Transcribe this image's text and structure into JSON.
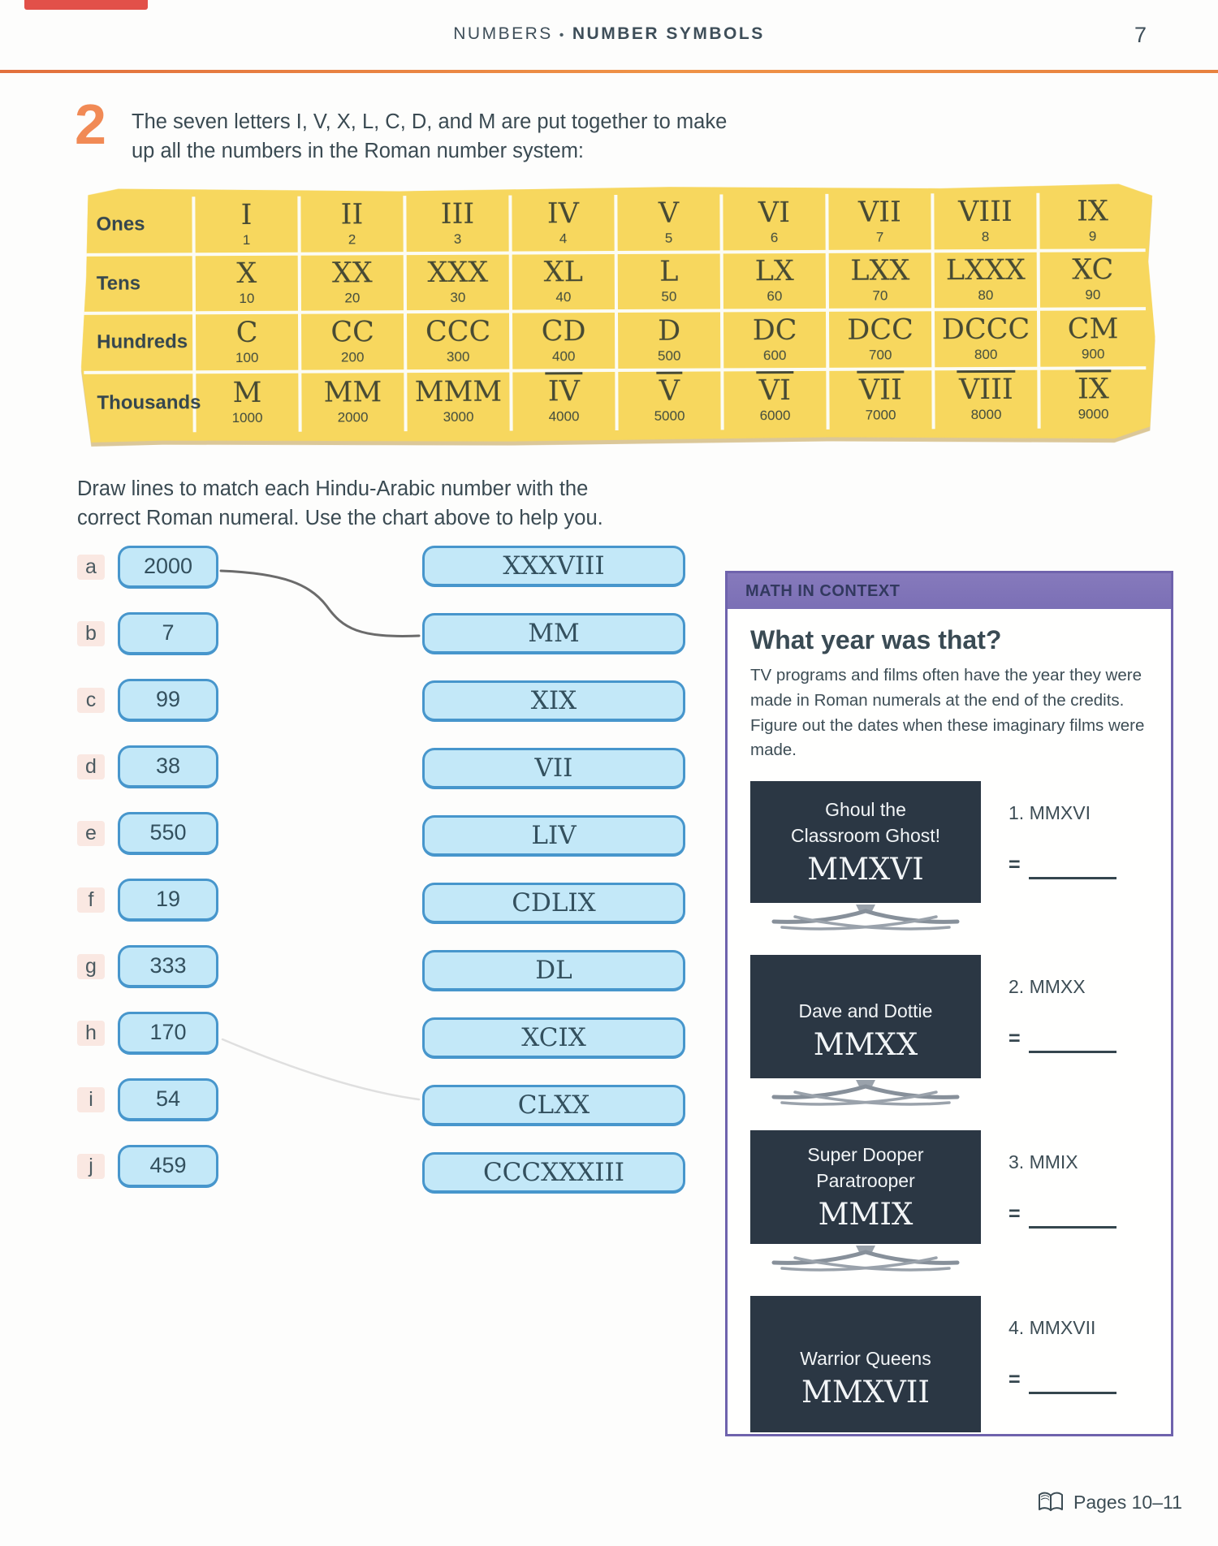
{
  "header": {
    "section": "NUMBERS",
    "separator": "•",
    "title": "NUMBER SYMBOLS",
    "page_number": "7"
  },
  "lesson": {
    "number": "2",
    "intro_lines": [
      "The seven letters I, V, X, L, C, D, and M are put together to make",
      "up all the numbers in the Roman number system:"
    ]
  },
  "numeral_table": {
    "rows": [
      {
        "label": "Ones",
        "cells": [
          {
            "roman": "I",
            "value": "1",
            "overline": false
          },
          {
            "roman": "II",
            "value": "2",
            "overline": false
          },
          {
            "roman": "III",
            "value": "3",
            "overline": false
          },
          {
            "roman": "IV",
            "value": "4",
            "overline": false
          },
          {
            "roman": "V",
            "value": "5",
            "overline": false
          },
          {
            "roman": "VI",
            "value": "6",
            "overline": false
          },
          {
            "roman": "VII",
            "value": "7",
            "overline": false
          },
          {
            "roman": "VIII",
            "value": "8",
            "overline": false
          },
          {
            "roman": "IX",
            "value": "9",
            "overline": false
          }
        ]
      },
      {
        "label": "Tens",
        "cells": [
          {
            "roman": "X",
            "value": "10",
            "overline": false
          },
          {
            "roman": "XX",
            "value": "20",
            "overline": false
          },
          {
            "roman": "XXX",
            "value": "30",
            "overline": false
          },
          {
            "roman": "XL",
            "value": "40",
            "overline": false
          },
          {
            "roman": "L",
            "value": "50",
            "overline": false
          },
          {
            "roman": "LX",
            "value": "60",
            "overline": false
          },
          {
            "roman": "LXX",
            "value": "70",
            "overline": false
          },
          {
            "roman": "LXXX",
            "value": "80",
            "overline": false
          },
          {
            "roman": "XC",
            "value": "90",
            "overline": false
          }
        ]
      },
      {
        "label": "Hundreds",
        "cells": [
          {
            "roman": "C",
            "value": "100",
            "overline": false
          },
          {
            "roman": "CC",
            "value": "200",
            "overline": false
          },
          {
            "roman": "CCC",
            "value": "300",
            "overline": false
          },
          {
            "roman": "CD",
            "value": "400",
            "overline": false
          },
          {
            "roman": "D",
            "value": "500",
            "overline": false
          },
          {
            "roman": "DC",
            "value": "600",
            "overline": false
          },
          {
            "roman": "DCC",
            "value": "700",
            "overline": false
          },
          {
            "roman": "DCCC",
            "value": "800",
            "overline": false
          },
          {
            "roman": "CM",
            "value": "900",
            "overline": false
          }
        ]
      },
      {
        "label": "Thousands",
        "cells": [
          {
            "roman": "M",
            "value": "1000",
            "overline": false
          },
          {
            "roman": "MM",
            "value": "2000",
            "overline": false
          },
          {
            "roman": "MMM",
            "value": "3000",
            "overline": false
          },
          {
            "roman": "IV",
            "value": "4000",
            "overline": true
          },
          {
            "roman": "V",
            "value": "5000",
            "overline": true
          },
          {
            "roman": "VI",
            "value": "6000",
            "overline": true
          },
          {
            "roman": "VII",
            "value": "7000",
            "overline": true
          },
          {
            "roman": "VIII",
            "value": "8000",
            "overline": true
          },
          {
            "roman": "IX",
            "value": "9000",
            "overline": true
          }
        ]
      }
    ]
  },
  "matching": {
    "instruction_lines": [
      "Draw lines to match each Hindu-Arabic number with the",
      "correct Roman numeral. Use the chart above to help you."
    ],
    "numbers": [
      {
        "letter": "a",
        "number": "2000"
      },
      {
        "letter": "b",
        "number": "7"
      },
      {
        "letter": "c",
        "number": "99"
      },
      {
        "letter": "d",
        "number": "38"
      },
      {
        "letter": "e",
        "number": "550"
      },
      {
        "letter": "f",
        "number": "19"
      },
      {
        "letter": "g",
        "number": "333"
      },
      {
        "letter": "h",
        "number": "170"
      },
      {
        "letter": "i",
        "number": "54"
      },
      {
        "letter": "j",
        "number": "459"
      }
    ],
    "romans": [
      "XXXVIII",
      "MM",
      "XIX",
      "VII",
      "LIV",
      "CDLIX",
      "DL",
      "XCIX",
      "CLXX",
      "CCCXXXIII"
    ],
    "drawn_example": {
      "from": "2000",
      "to": "MM"
    }
  },
  "math_in_context": {
    "header": "MATH IN CONTEXT",
    "title": "What year was that?",
    "paragraph": "TV programs and films often have the year they were made in Roman numerals at the end of the credits. Figure out the dates when these imaginary films were made.",
    "tvs": [
      {
        "title_lines": [
          "Ghoul the",
          "Classroom Ghost!"
        ],
        "roman": "MMXVI"
      },
      {
        "title_lines": [
          "Dave and Dottie"
        ],
        "roman": "MMXX"
      },
      {
        "title_lines": [
          "Super Dooper",
          "Paratrooper"
        ],
        "roman": "MMIX"
      },
      {
        "title_lines": [
          "Warrior Queens"
        ],
        "roman": "MMXVII"
      }
    ],
    "answers": [
      {
        "index": "1.",
        "roman": "MMXVI",
        "equals": "="
      },
      {
        "index": "2.",
        "roman": "MMXX",
        "equals": "="
      },
      {
        "index": "3.",
        "roman": "MMIX",
        "equals": "="
      },
      {
        "index": "4.",
        "roman": "MMXVII",
        "equals": "="
      }
    ]
  },
  "footer": {
    "pages_label": "Pages 10–11"
  },
  "colors": {
    "accent_orange": "#ee8a43",
    "chart_yellow": "#f7d75e",
    "pill_fill": "#c3e8f8",
    "pill_border": "#4796cc",
    "context_purple": "#7b6fb5",
    "context_border": "#6f63ad",
    "tv_screen": "#2b3744",
    "text_dark": "#3d4d55",
    "scan_strip_red": "#e25049"
  }
}
